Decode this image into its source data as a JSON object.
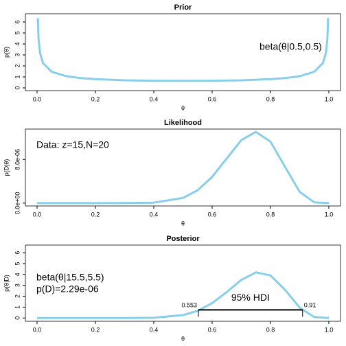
{
  "chart_data": [
    {
      "type": "line",
      "title": "Prior",
      "x_label": "θ",
      "y_label": "p(θ)",
      "annotations": [
        "beta(θ|0.5,0.5)"
      ],
      "x": [
        0.0025,
        0.005,
        0.01,
        0.02,
        0.05,
        0.1,
        0.15,
        0.2,
        0.3,
        0.4,
        0.5,
        0.6,
        0.7,
        0.8,
        0.85,
        0.9,
        0.95,
        0.98,
        0.99,
        0.995,
        0.9975
      ],
      "series": [
        {
          "color": "#87ceeb",
          "values": [
            6.37,
            4.51,
            3.2,
            2.27,
            1.46,
            1.06,
            0.89,
            0.8,
            0.69,
            0.65,
            0.64,
            0.65,
            0.69,
            0.8,
            0.89,
            1.06,
            1.46,
            2.27,
            3.2,
            4.51,
            6.37
          ]
        }
      ],
      "xlim": [
        -0.04,
        1.04
      ],
      "ylim": [
        -0.25,
        6.75
      ],
      "xticks": [
        {
          "value": 0,
          "label": "0.0"
        },
        0.2,
        0.4,
        0.6,
        0.8,
        {
          "value": 1,
          "label": "1.0"
        }
      ],
      "yticks": [
        0,
        1,
        2,
        3,
        4,
        5,
        6
      ]
    },
    {
      "type": "line",
      "title": "Likelihood",
      "x_label": "θ",
      "y_label": "p(D|θ)",
      "annotations": [
        "Data: z=15,N=20"
      ],
      "x": [
        0,
        0.1,
        0.2,
        0.3,
        0.4,
        0.5,
        0.55,
        0.6,
        0.65,
        0.7,
        0.75,
        0.8,
        0.85,
        0.9,
        0.95,
        1
      ],
      "series": [
        {
          "color": "#87ceeb",
          "values": [
            0,
            0,
            0,
            2.4e-09,
            8.35e-08,
            9.54e-07,
            2.35e-06,
            4.81e-06,
            8.19e-06,
            1.155e-05,
            1.305e-05,
            1.126e-05,
            6.63e-06,
            2.06e-06,
            1.45e-07,
            0
          ]
        }
      ],
      "xlim": [
        -0.04,
        1.04
      ],
      "ylim": [
        -5.2e-07,
        1.357e-05
      ],
      "xticks": [
        {
          "value": 0,
          "label": "0.0"
        },
        0.2,
        0.4,
        0.6,
        0.8,
        {
          "value": 1,
          "label": "1.0"
        }
      ],
      "yticks": [
        {
          "value": 0,
          "label": "0.0e+00"
        },
        {
          "value": 8e-06,
          "label": "8.0e-06"
        }
      ]
    },
    {
      "type": "line",
      "title": "Posterior",
      "x_label": "θ",
      "y_label": "p(θ|D)",
      "annotations": [
        "beta(θ|15.5,5.5)",
        "p(D)=2.29e-06"
      ],
      "x": [
        0,
        0.1,
        0.2,
        0.3,
        0.4,
        0.5,
        0.55,
        0.6,
        0.65,
        0.7,
        0.75,
        0.8,
        0.85,
        0.9,
        0.95,
        1
      ],
      "series": [
        {
          "color": "#87ceeb",
          "values": [
            0,
            0,
            0,
            0.001,
            0.024,
            0.265,
            0.657,
            1.365,
            2.387,
            3.5,
            4.19,
            3.91,
            2.58,
            0.955,
            0.093,
            0
          ]
        }
      ],
      "hdi": {
        "values": [
          0.553,
          0.91
        ],
        "height": 0.75,
        "label": "95% HDI"
      },
      "xlim": [
        -0.04,
        1.04
      ],
      "ylim": [
        -0.3,
        6.7
      ],
      "xticks": [
        {
          "value": 0,
          "label": "0.0"
        },
        0.2,
        0.4,
        0.6,
        0.8,
        {
          "value": 1,
          "label": "1.0"
        }
      ],
      "yticks": [
        0,
        1,
        2,
        3,
        4,
        5,
        6
      ]
    }
  ]
}
